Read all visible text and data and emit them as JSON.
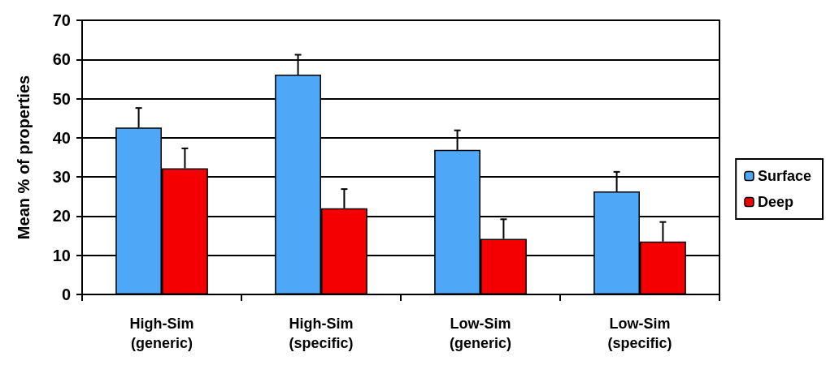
{
  "chart_data": {
    "type": "bar",
    "ylabel": "Mean % of properties",
    "categories": [
      "High-Sim\n(generic)",
      "High-Sim\n(specific)",
      "Low-Sim\n(generic)",
      "Low-Sim\n(specific)"
    ],
    "series": [
      {
        "name": "Surface",
        "color": "#4fa7f7",
        "values": [
          42.6,
          56.1,
          36.9,
          26.3
        ],
        "errors": [
          [
            42.6,
            47.6
          ],
          [
            56.1,
            61.2
          ],
          [
            36.9,
            41.9
          ],
          [
            26.3,
            31.3
          ]
        ]
      },
      {
        "name": "Deep",
        "color": "#f50000",
        "values": [
          32.2,
          22.0,
          14.2,
          13.5
        ],
        "errors": [
          [
            32.2,
            37.3
          ],
          [
            22.0,
            26.9
          ],
          [
            14.2,
            19.2
          ],
          [
            13.5,
            18.5
          ]
        ]
      }
    ],
    "ylim": [
      0,
      70
    ],
    "yticks": [
      0,
      10,
      20,
      30,
      40,
      50,
      60,
      70
    ],
    "grid": "y",
    "legend": "right"
  }
}
